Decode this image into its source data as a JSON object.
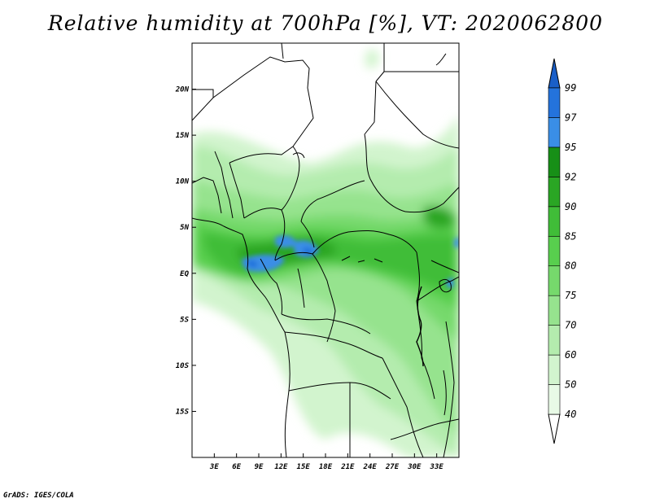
{
  "title": "Relative humidity at 700hPa [%], VT: 2020062800",
  "credit": "GrADS: IGES/COLA",
  "map": {
    "lon_range": [
      0,
      36
    ],
    "lat_range": [
      -20,
      25
    ],
    "lon_ticks": [
      {
        "lon": 3,
        "label": "3E"
      },
      {
        "lon": 6,
        "label": "6E"
      },
      {
        "lon": 9,
        "label": "9E"
      },
      {
        "lon": 12,
        "label": "12E"
      },
      {
        "lon": 15,
        "label": "15E"
      },
      {
        "lon": 18,
        "label": "18E"
      },
      {
        "lon": 21,
        "label": "21E"
      },
      {
        "lon": 24,
        "label": "24E"
      },
      {
        "lon": 27,
        "label": "27E"
      },
      {
        "lon": 30,
        "label": "30E"
      },
      {
        "lon": 33,
        "label": "33E"
      }
    ],
    "lat_ticks": [
      {
        "lat": 20,
        "label": "20N"
      },
      {
        "lat": 15,
        "label": "15N"
      },
      {
        "lat": 10,
        "label": "10N"
      },
      {
        "lat": 5,
        "label": "5N"
      },
      {
        "lat": 0,
        "label": "EQ"
      },
      {
        "lat": -5,
        "label": "5S"
      },
      {
        "lat": -10,
        "label": "10S"
      },
      {
        "lat": -15,
        "label": "15S"
      }
    ]
  },
  "colorbar": {
    "levels": [
      {
        "label": "40",
        "color": "#e8fae6"
      },
      {
        "label": "50",
        "color": "#d2f4ce"
      },
      {
        "label": "60",
        "color": "#b4ecae"
      },
      {
        "label": "70",
        "color": "#96e38e"
      },
      {
        "label": "75",
        "color": "#76d96c"
      },
      {
        "label": "80",
        "color": "#58cf4e"
      },
      {
        "label": "85",
        "color": "#40bd38"
      },
      {
        "label": "90",
        "color": "#2aa624"
      },
      {
        "label": "92",
        "color": "#178f17"
      },
      {
        "label": "95",
        "color": "#3a8ee6"
      },
      {
        "label": "97",
        "color": "#2473dc"
      },
      {
        "label": "99",
        "color": "#1a5fc8"
      }
    ],
    "below_color": "#ffffff",
    "above_color": "#1a5fc8"
  }
}
